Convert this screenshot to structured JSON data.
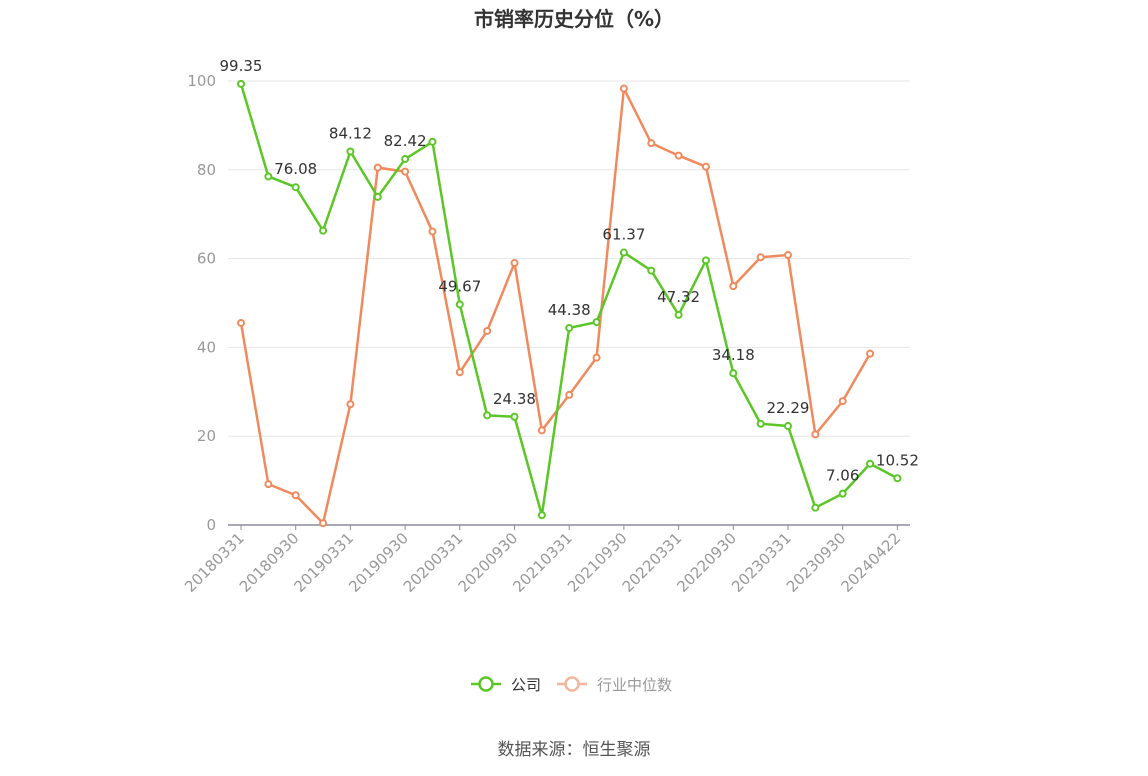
{
  "chart_data": {
    "type": "line",
    "title": "市销率历史分位（%）",
    "source": "数据来源：恒生聚源",
    "ylim": [
      0,
      100
    ],
    "yticks": [
      "0",
      "20",
      "40",
      "60",
      "80",
      "100"
    ],
    "xtick_labels": [
      "20180331",
      "20180930",
      "20190331",
      "20190930",
      "20200331",
      "20200930",
      "20210331",
      "20210930",
      "20220331",
      "20220930",
      "20230331",
      "20230930",
      "20240422"
    ],
    "categories": [
      "20180331",
      "20180630",
      "20180930",
      "20181231",
      "20190331",
      "20190630",
      "20190930",
      "20191231",
      "20200331",
      "20200630",
      "20200930",
      "20201231",
      "20210331",
      "20210630",
      "20210930",
      "20211231",
      "20220331",
      "20220630",
      "20220930",
      "20221231",
      "20230331",
      "20230630",
      "20230930",
      "20231231",
      "20240422"
    ],
    "series": [
      {
        "name": "公司",
        "color": "#5bc726",
        "values": [
          99.35,
          78.5,
          76.08,
          66.3,
          84.12,
          73.9,
          82.42,
          86.3,
          49.67,
          24.7,
          24.38,
          2.2,
          44.38,
          45.7,
          61.37,
          57.3,
          47.32,
          59.6,
          34.18,
          22.8,
          22.29,
          3.9,
          7.06,
          13.8,
          10.52
        ],
        "labels": {
          "0": "99.35",
          "2": "76.08",
          "4": "84.12",
          "6": "82.42",
          "8": "49.67",
          "10": "24.38",
          "12": "44.38",
          "14": "61.37",
          "16": "47.32",
          "18": "34.18",
          "20": "22.29",
          "22": "7.06",
          "24": "10.52"
        }
      },
      {
        "name": "行业中位数",
        "color": "#f08a5d",
        "values": [
          45.5,
          9.2,
          6.7,
          0.4,
          27.2,
          80.5,
          79.6,
          66.1,
          34.4,
          43.7,
          59.0,
          21.3,
          29.3,
          37.7,
          98.3,
          86.0,
          83.2,
          80.7,
          53.8,
          60.3,
          60.8,
          20.4,
          27.9,
          38.6,
          null
        ]
      }
    ],
    "legend": [
      {
        "label": "公司",
        "color": "#5bc726",
        "active": true
      },
      {
        "label": "行业中位数",
        "color": "#f5b59c",
        "active": false
      }
    ],
    "legend_position": "bottom-center",
    "grid": true
  }
}
